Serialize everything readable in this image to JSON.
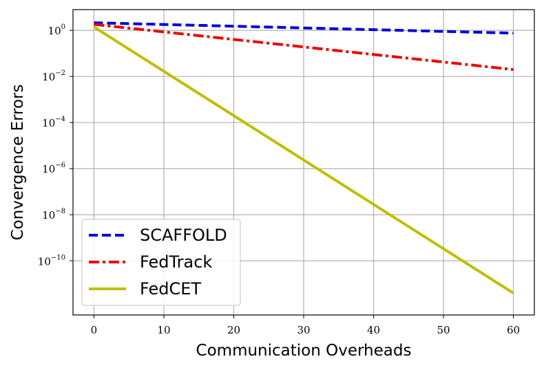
{
  "chart_data": {
    "type": "line",
    "xlabel": "Communication Overheads",
    "ylabel": "Convergence Errors",
    "yscale": "log",
    "xlim": [
      -3,
      63
    ],
    "ylim_exp": [
      -12.35,
      0.9
    ],
    "x_ticks": [
      "0",
      "10",
      "20",
      "30",
      "40",
      "50",
      "60"
    ],
    "y_ticks": [
      {
        "base": "10",
        "exp": "0"
      },
      {
        "base": "10",
        "exp": "−2"
      },
      {
        "base": "10",
        "exp": "−4"
      },
      {
        "base": "10",
        "exp": "−6"
      },
      {
        "base": "10",
        "exp": "−8"
      },
      {
        "base": "10",
        "exp": "−10"
      }
    ],
    "grid": true,
    "legend_position": "lower-left",
    "series": [
      {
        "name": "SCAFFOLD",
        "color": "#0000dd",
        "style": "dashed",
        "x": [
          0,
          60
        ],
        "log10_y": [
          0.33,
          -0.12
        ]
      },
      {
        "name": "FedTrack",
        "color": "#ee0000",
        "style": "dashdot",
        "x": [
          0,
          60
        ],
        "log10_y": [
          0.26,
          -1.7
        ]
      },
      {
        "name": "FedCET",
        "color": "#bfbf00",
        "style": "solid",
        "x": [
          0,
          60
        ],
        "log10_y": [
          0.15,
          -11.4
        ]
      }
    ]
  }
}
